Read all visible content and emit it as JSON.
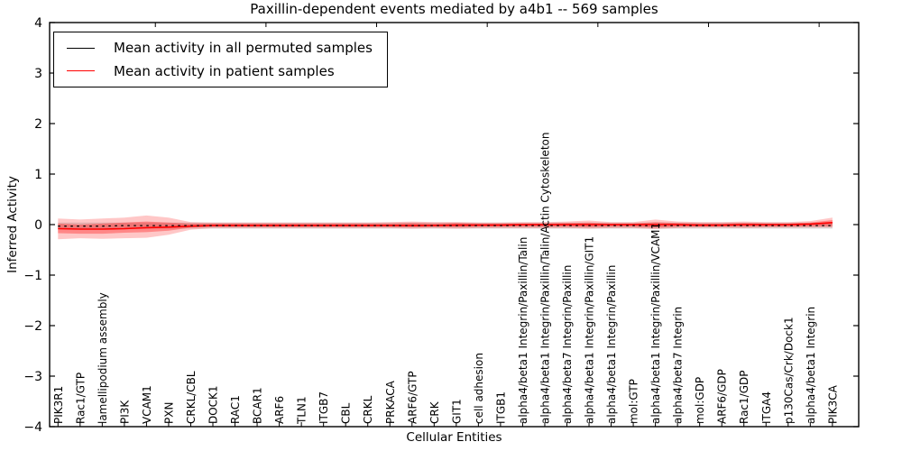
{
  "chart_data": {
    "type": "line",
    "title": "Paxillin-dependent events mediated by a4b1 -- 569 samples",
    "xlabel": "Cellular Entities",
    "ylabel": "Inferred Activity",
    "ylim": [
      -4,
      4
    ],
    "yticks": [
      4,
      3,
      2,
      1,
      0,
      -1,
      -2,
      -3,
      -4
    ],
    "grid": false,
    "legend": {
      "position": "upper-left",
      "entries": [
        {
          "label": "Mean activity in all permuted samples",
          "color": "#000000",
          "style": "dashed"
        },
        {
          "label": "Mean activity in patient samples",
          "color": "#ff0000",
          "style": "solid"
        }
      ]
    },
    "categories": [
      "PIK3R1",
      "Rac1/GTP",
      "lamellipodium assembly",
      "PI3K",
      "VCAM1",
      "PXN",
      "CRKL/CBL",
      "DOCK1",
      "RAC1",
      "BCAR1",
      "ARF6",
      "TLN1",
      "ITGB7",
      "CBL",
      "CRKL",
      "PRKACA",
      "ARF6/GTP",
      "CRK",
      "GIT1",
      "cell adhesion",
      "ITGB1",
      "alpha4/beta1 Integrin/Paxillin/Talin",
      "alpha4/beta1 Integrin/Paxillin/Talin/Actin Cytoskeleton",
      "alpha4/beta7 Integrin/Paxillin",
      "alpha4/beta1 Integrin/Paxillin/GIT1",
      "alpha4/beta1 Integrin/Paxillin",
      "mol:GTP",
      "alpha4/beta1 Integrin/Paxillin/VCAM1",
      "alpha4/beta7 Integrin",
      "mol:GDP",
      "ARF6/GDP",
      "Rac1/GDP",
      "ITGA4",
      "p130Cas/Crk/Dock1",
      "alpha4/beta1 Integrin",
      "PIK3CA"
    ],
    "series": [
      {
        "name": "Mean activity in all permuted samples",
        "color": "#000000",
        "values": [
          -0.03,
          -0.03,
          -0.03,
          -0.02,
          -0.02,
          -0.02,
          -0.02,
          -0.02,
          -0.02,
          -0.02,
          -0.02,
          -0.02,
          -0.02,
          -0.02,
          -0.02,
          -0.02,
          -0.02,
          -0.02,
          -0.02,
          -0.02,
          -0.02,
          -0.02,
          -0.02,
          -0.02,
          -0.02,
          -0.02,
          -0.02,
          -0.02,
          -0.02,
          -0.02,
          -0.02,
          -0.02,
          -0.02,
          -0.02,
          -0.02,
          -0.02
        ]
      },
      {
        "name": "Mean activity in patient samples",
        "color": "#ff0000",
        "values": [
          -0.08,
          -0.09,
          -0.09,
          -0.08,
          -0.06,
          -0.05,
          -0.03,
          -0.02,
          -0.02,
          -0.02,
          -0.02,
          -0.02,
          -0.02,
          -0.02,
          -0.02,
          -0.02,
          -0.02,
          -0.02,
          -0.01,
          -0.01,
          -0.01,
          0,
          0,
          0,
          0,
          0,
          0,
          0,
          0,
          -0.01,
          -0.01,
          0,
          0,
          0,
          0.01,
          0.04
        ]
      }
    ],
    "bands": [
      {
        "name": "permuted-range",
        "color": "#000000",
        "alpha": 0.13,
        "upper": [
          0.04,
          0.04,
          0.04,
          0.04,
          0.04,
          0.04,
          0.04,
          0.04,
          0.04,
          0.04,
          0.04,
          0.04,
          0.04,
          0.04,
          0.04,
          0.04,
          0.04,
          0.04,
          0.04,
          0.04,
          0.04,
          0.04,
          0.04,
          0.04,
          0.04,
          0.04,
          0.04,
          0.04,
          0.04,
          0.04,
          0.04,
          0.04,
          0.04,
          0.04,
          0.04,
          0.04
        ],
        "lower": [
          -0.08,
          -0.08,
          -0.08,
          -0.08,
          -0.08,
          -0.08,
          -0.08,
          -0.08,
          -0.08,
          -0.08,
          -0.08,
          -0.08,
          -0.08,
          -0.08,
          -0.08,
          -0.08,
          -0.08,
          -0.08,
          -0.08,
          -0.08,
          -0.08,
          -0.08,
          -0.08,
          -0.08,
          -0.08,
          -0.08,
          -0.08,
          -0.08,
          -0.08,
          -0.08,
          -0.08,
          -0.08,
          -0.08,
          -0.08,
          -0.08,
          -0.08
        ]
      },
      {
        "name": "patient-range-outer",
        "color": "#ff0000",
        "alpha": 0.22,
        "upper": [
          0.12,
          0.1,
          0.12,
          0.14,
          0.18,
          0.14,
          0.05,
          0.04,
          0.04,
          0.04,
          0.04,
          0.04,
          0.04,
          0.04,
          0.04,
          0.05,
          0.06,
          0.05,
          0.05,
          0.04,
          0.04,
          0.05,
          0.05,
          0.06,
          0.08,
          0.05,
          0.05,
          0.1,
          0.06,
          0.05,
          0.05,
          0.06,
          0.05,
          0.05,
          0.07,
          0.14
        ],
        "lower": [
          -0.29,
          -0.27,
          -0.28,
          -0.27,
          -0.26,
          -0.2,
          -0.1,
          -0.07,
          -0.07,
          -0.07,
          -0.07,
          -0.07,
          -0.07,
          -0.07,
          -0.07,
          -0.07,
          -0.08,
          -0.07,
          -0.08,
          -0.07,
          -0.07,
          -0.07,
          -0.07,
          -0.07,
          -0.08,
          -0.07,
          -0.07,
          -0.09,
          -0.07,
          -0.06,
          -0.06,
          -0.07,
          -0.06,
          -0.06,
          -0.06,
          -0.06
        ]
      },
      {
        "name": "patient-range-inner",
        "color": "#ff0000",
        "alpha": 0.32,
        "upper": [
          0.02,
          0.0,
          0.02,
          0.04,
          0.06,
          0.04,
          0.02,
          0.02,
          0.02,
          0.02,
          0.02,
          0.02,
          0.02,
          0.02,
          0.02,
          0.02,
          0.03,
          0.02,
          0.03,
          0.02,
          0.02,
          0.02,
          0.02,
          0.03,
          0.04,
          0.02,
          0.02,
          0.05,
          0.03,
          0.02,
          0.02,
          0.03,
          0.02,
          0.02,
          0.04,
          0.09
        ],
        "lower": [
          -0.17,
          -0.18,
          -0.18,
          -0.16,
          -0.15,
          -0.12,
          -0.06,
          -0.04,
          -0.04,
          -0.04,
          -0.04,
          -0.04,
          -0.04,
          -0.04,
          -0.04,
          -0.04,
          -0.05,
          -0.04,
          -0.05,
          -0.04,
          -0.04,
          -0.04,
          -0.04,
          -0.04,
          -0.05,
          -0.04,
          -0.04,
          -0.06,
          -0.04,
          -0.04,
          -0.04,
          -0.04,
          -0.04,
          -0.04,
          -0.03,
          -0.03
        ]
      }
    ],
    "ytick_labels": [
      "4",
      "3",
      "2",
      "1",
      "0",
      "−1",
      "−2",
      "−3",
      "−4"
    ]
  }
}
